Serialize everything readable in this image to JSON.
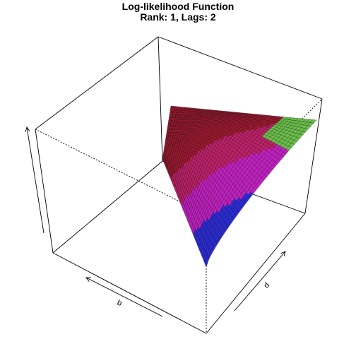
{
  "chart_data": {
    "type": "surface",
    "title": "Log-likelihood Function",
    "subtitle": "Rank: 1, Lags: 2",
    "xlabel": "b",
    "ylabel": "d",
    "zlabel": "",
    "box": true,
    "ticks": false,
    "surface": {
      "description_colors": [
        "#5aa0ff",
        "#2b2bd6",
        "#c020c0",
        "#c0206a",
        "#a01830",
        "#9a1a30",
        "#6bbf4a"
      ],
      "grid_resolution": 40,
      "shape": "saddle-like surface peaking along two boundary edges and dropping sharply toward the front corner"
    }
  }
}
